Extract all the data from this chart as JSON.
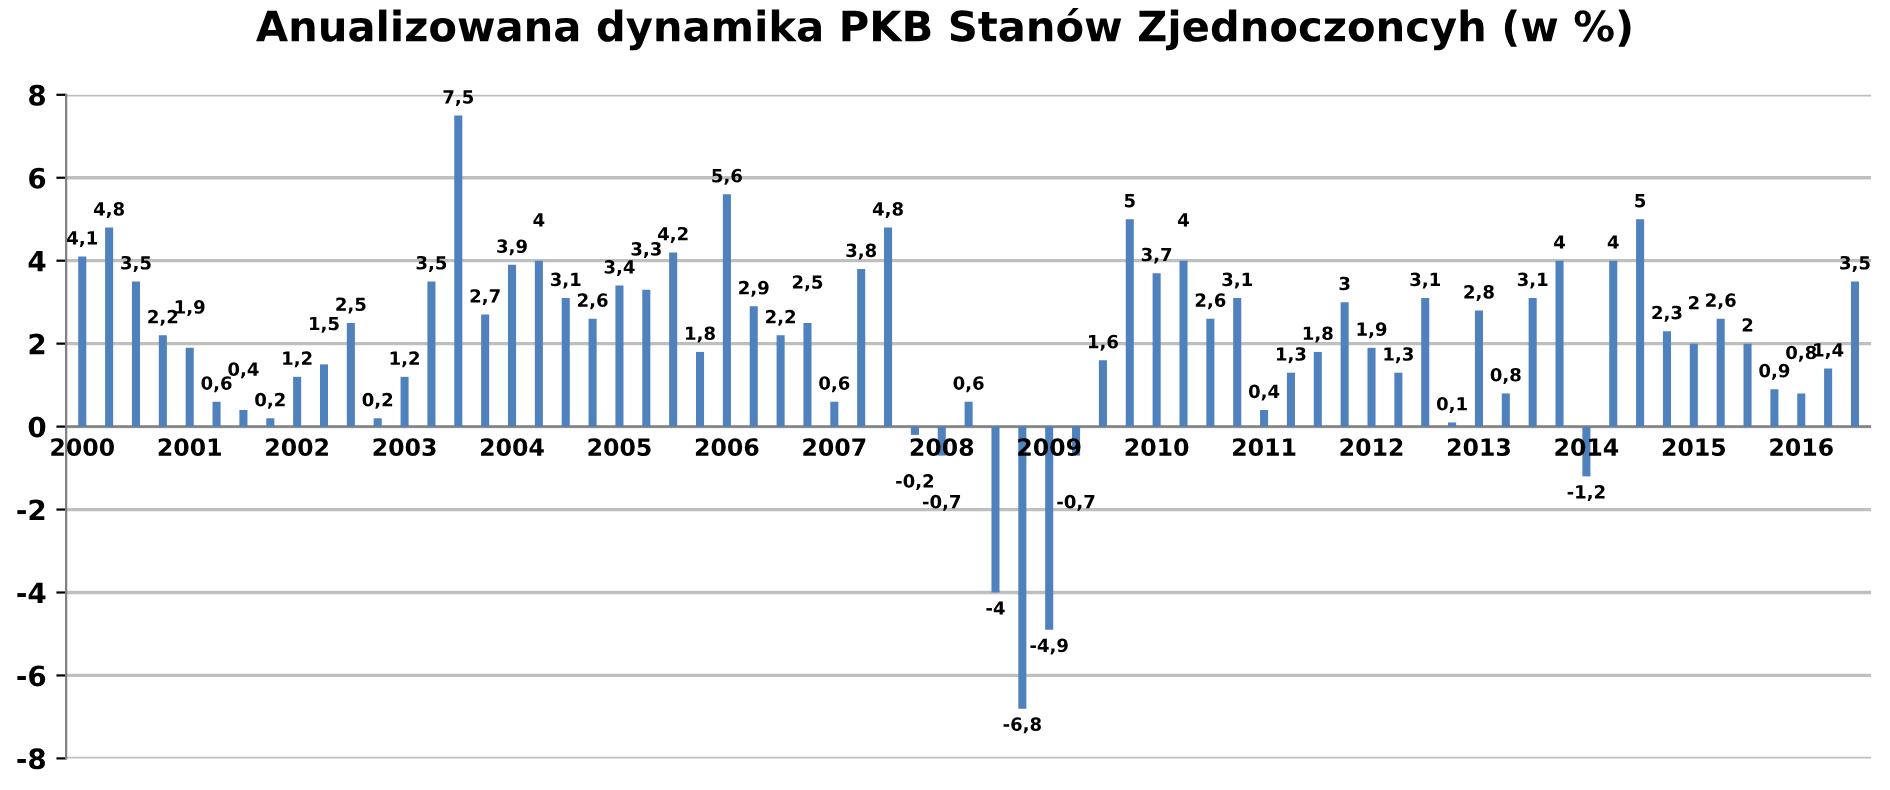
{
  "chart_data": {
    "type": "bar",
    "title": "Anualizowana dynamika PKB Stanów Zjednoczoncyh (w %)",
    "categories": [
      "2000",
      null,
      null,
      null,
      "2001",
      null,
      null,
      null,
      "2002",
      null,
      null,
      null,
      "2003",
      null,
      null,
      null,
      "2004",
      null,
      null,
      null,
      "2005",
      null,
      null,
      null,
      "2006",
      null,
      null,
      null,
      "2007",
      null,
      null,
      null,
      "2008",
      null,
      null,
      null,
      "2009",
      null,
      null,
      null,
      "2010",
      null,
      null,
      null,
      "2011",
      null,
      null,
      null,
      "2012",
      null,
      null,
      null,
      "2013",
      null,
      null,
      null,
      "2014",
      null,
      null,
      null,
      "2015",
      null,
      null,
      null,
      "2016",
      null,
      null
    ],
    "values": [
      4.1,
      4.8,
      3.5,
      2.2,
      1.9,
      0.6,
      0.4,
      0.2,
      1.2,
      1.5,
      2.5,
      0.2,
      1.2,
      3.5,
      7.5,
      2.7,
      3.9,
      4,
      3.1,
      2.6,
      3.4,
      3.3,
      4.2,
      1.8,
      5.6,
      2.9,
      2.2,
      2.5,
      0.6,
      3.8,
      4.8,
      -0.2,
      -0.7,
      0.6,
      -4,
      -6.8,
      -4.9,
      -0.7,
      1.6,
      5,
      3.7,
      4,
      2.6,
      3.1,
      0.4,
      1.3,
      1.8,
      3,
      1.9,
      1.3,
      3.1,
      0.1,
      2.8,
      0.8,
      3.1,
      4,
      -1.2,
      4,
      5,
      2.3,
      2,
      2.6,
      2,
      0.9,
      0.8,
      1.4,
      3.5
    ],
    "value_labels": [
      "4,1",
      "4,8",
      "3,5",
      "2,2",
      "1,9",
      "0,6",
      "0,4",
      "0,2",
      "1,2",
      "1,5",
      "2,5",
      "0,2",
      "1,2",
      "3,5",
      "7,5",
      "2,7",
      "3,9",
      "4",
      "3,1",
      "2,6",
      "3,4",
      "3,3",
      "4,2",
      "1,8",
      "5,6",
      "2,9",
      "2,2",
      "2,5",
      "0,6",
      "3,8",
      "4,8",
      "-0,2",
      "-0,7",
      "0,6",
      "-4",
      "-6,8",
      "-4,9",
      "-0,7",
      "1,6",
      "5",
      "3,7",
      "4",
      "2,6",
      "3,1",
      "0,4",
      "1,3",
      "1,8",
      "3",
      "1,9",
      "1,3",
      "3,1",
      "0,1",
      "2,8",
      "0,8",
      "3,1",
      "4",
      "-1,2",
      "4",
      "5",
      "2,3",
      "2",
      "2,6",
      "2",
      "0,9",
      "0,8",
      "1,4",
      "3,5"
    ],
    "color": "#4f81bd",
    "ylim": [
      -8,
      8
    ],
    "yticks": [
      -8,
      -6,
      -4,
      -2,
      0,
      2,
      4,
      6,
      8
    ],
    "grid": "y"
  }
}
